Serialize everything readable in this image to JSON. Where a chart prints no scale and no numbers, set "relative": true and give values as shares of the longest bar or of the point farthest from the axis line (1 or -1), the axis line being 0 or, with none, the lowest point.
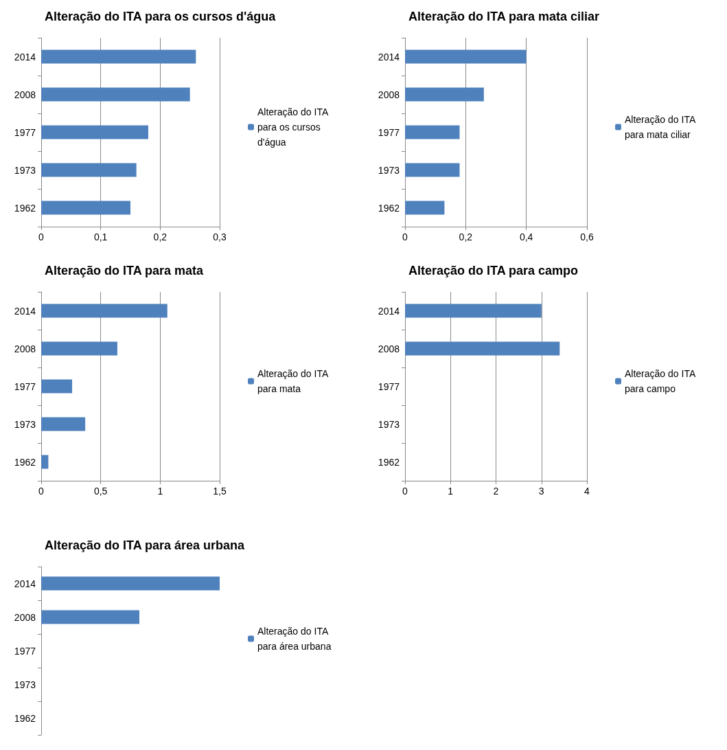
{
  "chart_data": [
    {
      "type": "bar",
      "orientation": "horizontal",
      "title": "Alteração do ITA para os cursos d'água",
      "categories": [
        "2014",
        "2008",
        "1977",
        "1973",
        "1962"
      ],
      "series": [
        {
          "name": "Alteração do ITA para os cursos d'água",
          "color": "#4f81bd",
          "values": [
            0.26,
            0.25,
            0.18,
            0.16,
            0.15
          ]
        }
      ],
      "xlim": [
        0,
        0.3
      ],
      "xticks": [
        0,
        {
          "value": 0.1,
          "label": "0,1"
        },
        {
          "value": 0.2,
          "label": "0,2"
        },
        {
          "value": 0.3,
          "label": "0,3"
        }
      ],
      "grid": "x",
      "legend": "right"
    },
    {
      "type": "bar",
      "orientation": "horizontal",
      "title": "Alteração do ITA para mata ciliar",
      "categories": [
        "2014",
        "2008",
        "1977",
        "1973",
        "1962"
      ],
      "series": [
        {
          "name": "Alteração do ITA para mata ciliar",
          "color": "#4f81bd",
          "values": [
            0.4,
            0.26,
            0.18,
            0.18,
            0.13
          ]
        }
      ],
      "xlim": [
        0,
        0.6
      ],
      "xticks": [
        0,
        {
          "value": 0.2,
          "label": "0,2"
        },
        {
          "value": 0.4,
          "label": "0,4"
        },
        {
          "value": 0.6,
          "label": "0,6"
        }
      ],
      "grid": "x",
      "legend": "right"
    },
    {
      "type": "bar",
      "orientation": "horizontal",
      "title": "Alteração do ITA para mata",
      "categories": [
        "2014",
        "2008",
        "1977",
        "1973",
        "1962"
      ],
      "series": [
        {
          "name": "Alteração do ITA para mata",
          "color": "#4f81bd",
          "values": [
            1.06,
            0.64,
            0.26,
            0.37,
            0.06
          ]
        }
      ],
      "xlim": [
        0,
        1.5
      ],
      "xticks": [
        0,
        {
          "value": 0.5,
          "label": "0,5"
        },
        1,
        {
          "value": 1.5,
          "label": "1,5"
        }
      ],
      "grid": "x",
      "legend": "right"
    },
    {
      "type": "bar",
      "orientation": "horizontal",
      "title": "Alteração do ITA para campo",
      "categories": [
        "2014",
        "2008",
        "1977",
        "1973",
        "1962"
      ],
      "series": [
        {
          "name": "Alteração do ITA para campo",
          "color": "#4f81bd",
          "values": [
            3.0,
            3.4,
            null,
            null,
            null
          ]
        }
      ],
      "xlim": [
        0,
        4
      ],
      "xticks": [
        0,
        1,
        2,
        3,
        4
      ],
      "grid": "x",
      "legend": "right"
    },
    {
      "type": "bar",
      "orientation": "horizontal",
      "relative": true,
      "title": "Alteração do ITA para área urbana",
      "categories": [
        "2014",
        "2008",
        "1977",
        "1973",
        "1962"
      ],
      "series": [
        {
          "name": "Alteração do ITA para área urbana",
          "color": "#4f81bd",
          "values": [
            1,
            0.55,
            null,
            null,
            null
          ]
        }
      ],
      "grid": false,
      "legend": "right"
    }
  ]
}
